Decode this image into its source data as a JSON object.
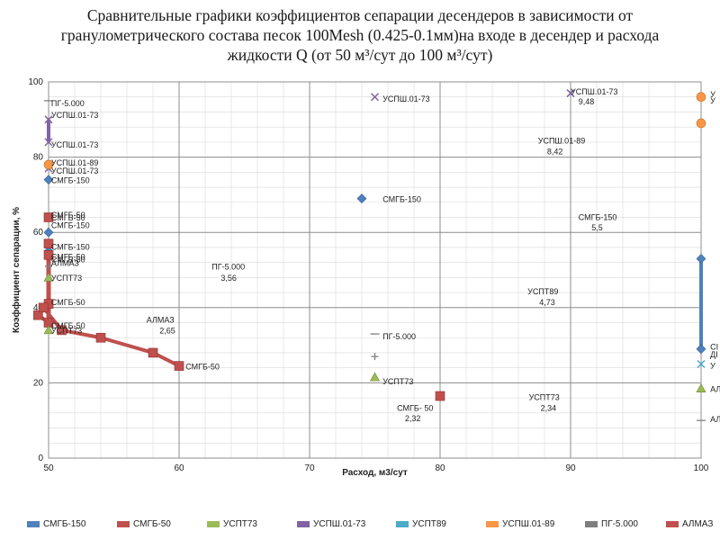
{
  "header": {
    "title_line1": "Сравнительные графики коэффициентов сепарации десендеров  в зависимости от",
    "title_line2": "гранулометрического  состава песок 100Mesh (0.425-0.1мм)на входе в десендер и расхода",
    "title_line3": "жидкости Q (от 50 м³/сут до 100 м³/сут)"
  },
  "chart_data": {
    "type": "scatter",
    "xlabel": "Расход, м3/сут",
    "ylabel": "Коэффициент сепарации, %",
    "xlim": [
      50,
      100
    ],
    "ylim": [
      0,
      100
    ],
    "xticks": [
      50,
      60,
      70,
      80,
      90,
      100
    ],
    "yticks": [
      0,
      20,
      40,
      60,
      80,
      100
    ],
    "grid": "major+minor",
    "legend_position": "bottom",
    "series": [
      {
        "name": "СМГБ-150",
        "color": "#4f81bd",
        "marker": "diamond",
        "x": [
          50,
          50,
          50,
          50,
          50,
          74,
          100,
          100
        ],
        "y": [
          74,
          64,
          60,
          57,
          55,
          69,
          53,
          29
        ]
      },
      {
        "name": "СМГБ-50",
        "color": "#c0504d",
        "marker": "square",
        "x": [
          50,
          50,
          50,
          50,
          50,
          49.2,
          49.6,
          51,
          54,
          58,
          60,
          80
        ],
        "y": [
          64,
          57,
          54,
          41,
          36,
          38,
          40,
          34,
          32,
          28,
          24.5,
          16.5
        ]
      },
      {
        "name": "УСПТ73",
        "color": "#9bbb59",
        "marker": "triangle",
        "x": [
          50,
          50,
          75,
          100
        ],
        "y": [
          48,
          34,
          21.5,
          18.5
        ]
      },
      {
        "name": "УСПШ.01-73",
        "color": "#8064a2",
        "marker": "x",
        "x": [
          50,
          50,
          50,
          75,
          90
        ],
        "y": [
          90,
          84,
          77,
          96,
          97
        ]
      },
      {
        "name": "УСПТ89",
        "color": "#4bacc6",
        "marker": "x",
        "x": [
          100
        ],
        "y": [
          25
        ]
      },
      {
        "name": "УСПШ.01-89",
        "color": "#f79646",
        "marker": "circle",
        "x": [
          50,
          100,
          100
        ],
        "y": [
          78,
          96,
          89
        ]
      },
      {
        "name": "ПГ-5.000",
        "color": "#7f7f7f",
        "marker": "dash",
        "x": [
          50,
          75,
          100
        ],
        "y": [
          95,
          33,
          10
        ]
      },
      {
        "name": "АЛМАЗ",
        "color": "#c0504d",
        "marker": "plus",
        "x": [
          50,
          75
        ],
        "y": [
          51,
          27
        ]
      }
    ],
    "point_labels": [
      {
        "text": "ПГ-5.000",
        "x": 50.2,
        "y": 94.3
      },
      {
        "text": "УСПШ.01-73",
        "x": 50.2,
        "y": 91.1
      },
      {
        "text": "УСПШ.01-73",
        "x": 50.2,
        "y": 83.3
      },
      {
        "text": "УСПШ.01-89",
        "x": 50.2,
        "y": 78.5
      },
      {
        "text": "УСПШ.01-73",
        "x": 50.2,
        "y": 76.3
      },
      {
        "text": "СМГБ-150",
        "x": 50.2,
        "y": 73.8
      },
      {
        "text": "СМГБ-50",
        "x": 50.2,
        "y": 64.6
      },
      {
        "text": "СМГБ-50",
        "x": 50.2,
        "y": 63.9
      },
      {
        "text": "СМГБ-150",
        "x": 50.2,
        "y": 61.8
      },
      {
        "text": "СМГБ-150",
        "x": 50.2,
        "y": 56.1
      },
      {
        "text": "СМГБ-50",
        "x": 50.2,
        "y": 53.5
      },
      {
        "text": "СМГБ-50",
        "x": 50.2,
        "y": 52.8
      },
      {
        "text": "АЛМАЗ",
        "x": 50.2,
        "y": 51.8
      },
      {
        "text": "УСПТ73",
        "x": 50.2,
        "y": 47.8
      },
      {
        "text": "СМГБ-50",
        "x": 50.2,
        "y": 41.4
      },
      {
        "text": "СМГБ-50",
        "x": 50.2,
        "y": 35.2
      },
      {
        "text": "УСПТ73",
        "x": 50.2,
        "y": 33.8
      },
      {
        "text": "СМГБ-50",
        "x": 60.5,
        "y": 24.3
      },
      {
        "text": "УСПШ.01-73",
        "x": 75.6,
        "y": 95.4
      },
      {
        "text": "СМГБ-150",
        "x": 75.6,
        "y": 68.8
      },
      {
        "text": "ПГ-5.000",
        "x": 75.6,
        "y": 32.3
      },
      {
        "text": "УСПТ73",
        "x": 75.6,
        "y": 20.3
      },
      {
        "text": "УСПШ.01-73",
        "x": 90,
        "y": 97.4
      },
      {
        "text": "9,48",
        "x": 90.6,
        "y": 94.7
      },
      {
        "text": "УСПШ.01-89",
        "x": 87.5,
        "y": 84.3
      },
      {
        "text": "8,42",
        "x": 88.2,
        "y": 81.5
      },
      {
        "text": "СМГБ-150",
        "x": 90.6,
        "y": 64
      },
      {
        "text": "5,5",
        "x": 91.6,
        "y": 61.2
      },
      {
        "text": "ПГ-5.000",
        "x": 62.5,
        "y": 50.8
      },
      {
        "text": "3,56",
        "x": 63.2,
        "y": 47.8
      },
      {
        "text": "УСПТ89",
        "x": 86.7,
        "y": 44.2
      },
      {
        "text": "4,73",
        "x": 87.6,
        "y": 41.4
      },
      {
        "text": "АЛМАЗ",
        "x": 57.5,
        "y": 36.7
      },
      {
        "text": "2,65",
        "x": 58.5,
        "y": 33.9
      },
      {
        "text": "УСПТ73",
        "x": 86.8,
        "y": 16.2
      },
      {
        "text": "2,34",
        "x": 87.7,
        "y": 13.3
      },
      {
        "text": "СМГБ- 50",
        "x": 76.7,
        "y": 13.3
      },
      {
        "text": "2,32",
        "x": 77.3,
        "y": 10.5
      },
      {
        "text": "У",
        "x": 100.7,
        "y": 96.7
      },
      {
        "text": "У",
        "x": 100.7,
        "y": 95
      },
      {
        "text": "СІ",
        "x": 100.7,
        "y": 29.5
      },
      {
        "text": "ДІ",
        "x": 100.7,
        "y": 27.5
      },
      {
        "text": "У",
        "x": 100.7,
        "y": 24.5
      },
      {
        "text": "АЛ",
        "x": 100.7,
        "y": 18.3
      },
      {
        "text": "АЛ",
        "x": 100.7,
        "y": 10.3
      }
    ],
    "legend": [
      "СМГБ-150",
      "СМГБ-50",
      "УСПТ73",
      "УСПШ.01-73",
      "УСПТ89",
      "УСПШ.01-89",
      "ПГ-5.000",
      "АЛМАЗ"
    ]
  }
}
